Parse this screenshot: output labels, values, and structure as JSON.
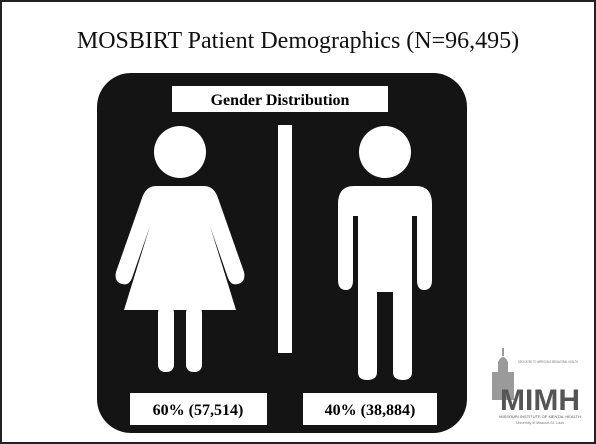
{
  "header": {
    "title": "MOSBIRT Patient Demographics (N=96,495)"
  },
  "panel": {
    "title": "Gender Distribution",
    "female": {
      "label": "60% (57,514)"
    },
    "male": {
      "label": "40% (38,884)"
    }
  },
  "logo": {
    "tagline": "DEDICATED TO IMPROVING BEHAVIORAL HEALTH",
    "name": "MIMH",
    "full_name": "MISSOURI INSTITUTE OF MENTAL HEALTH",
    "university": "University of Missouri-St. Louis"
  }
}
